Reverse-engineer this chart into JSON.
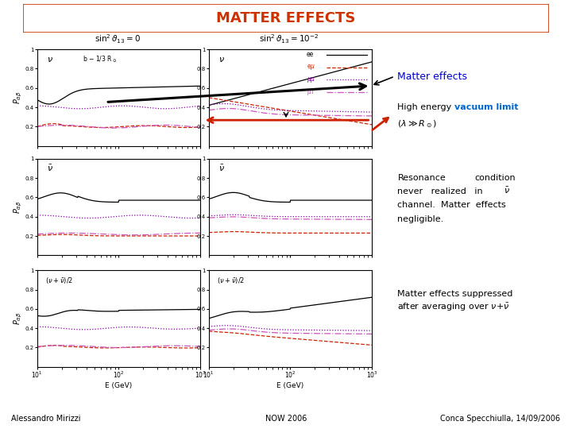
{
  "title": "MATTER EFFECTS",
  "title_color": "#CC3300",
  "title_border_color": "#CC3300",
  "background_color": "#FFFFFF",
  "footer_left": "Alessandro Mirizzi",
  "footer_center": "NOW 2006",
  "footer_right": "Conca Specchiulla, 14/09/2006",
  "annotation1_color": "#0000CC",
  "annotation2_cyan": "#0066CC"
}
